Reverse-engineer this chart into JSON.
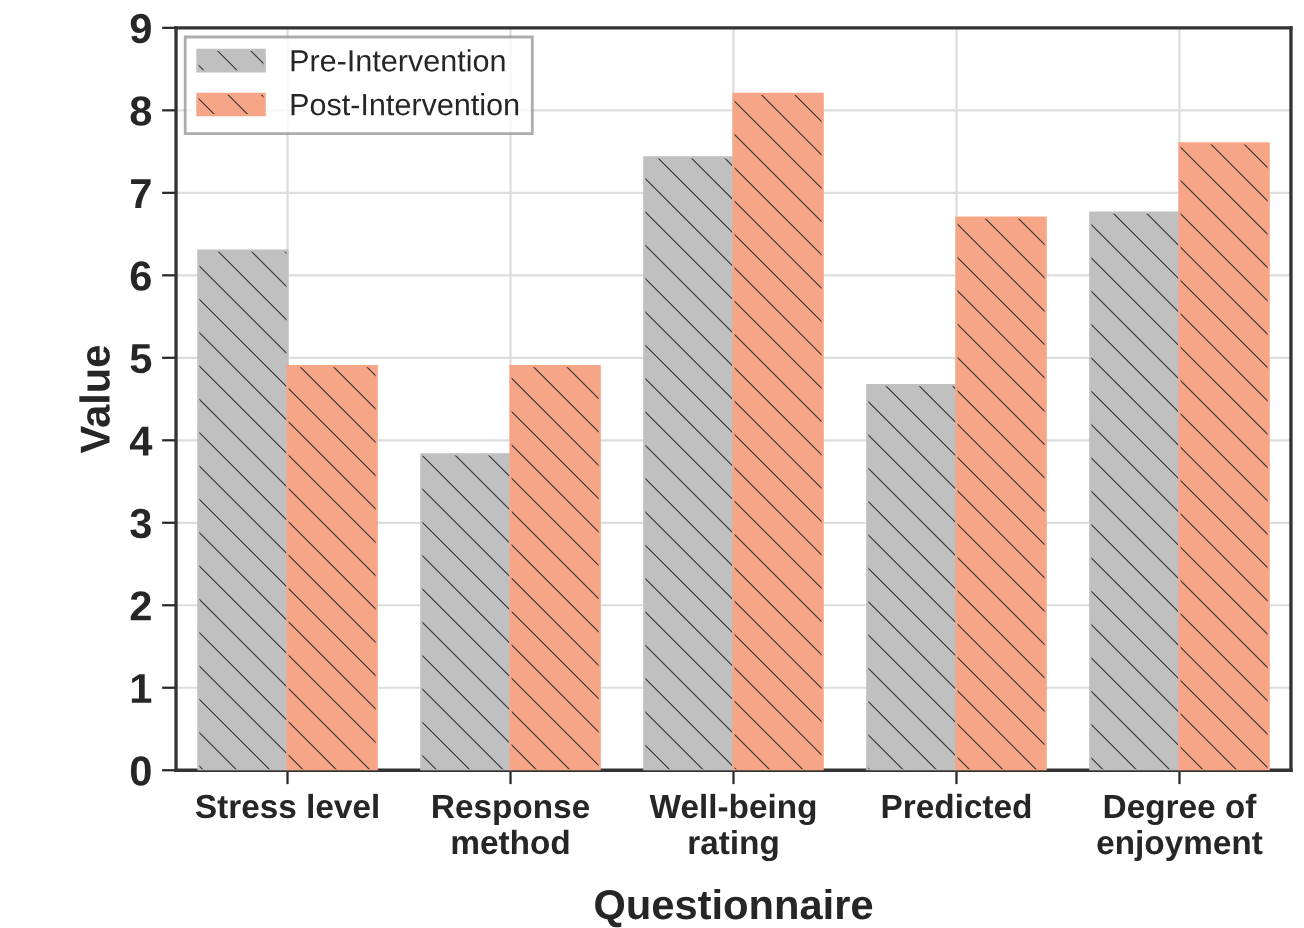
{
  "chart_data": {
    "type": "bar",
    "xlabel": "Questionnaire",
    "ylabel": "Value",
    "categories": [
      "Stress level",
      "Response\nmethod",
      "Well-being\nrating",
      "Predicted",
      "Degree of\nenjoyment"
    ],
    "series": [
      {
        "name": "Pre-Intervention",
        "color": "#c0c0c0",
        "values": [
          6.3,
          3.83,
          7.43,
          4.67,
          6.76
        ]
      },
      {
        "name": "Post-Intervention",
        "color": "#f7a587",
        "values": [
          4.9,
          4.9,
          8.2,
          6.7,
          7.6
        ]
      }
    ],
    "ylim": [
      0,
      9
    ],
    "yticks": [
      0,
      1,
      2,
      3,
      4,
      5,
      6,
      7,
      8,
      9
    ],
    "grid": true,
    "legend": "top left"
  }
}
